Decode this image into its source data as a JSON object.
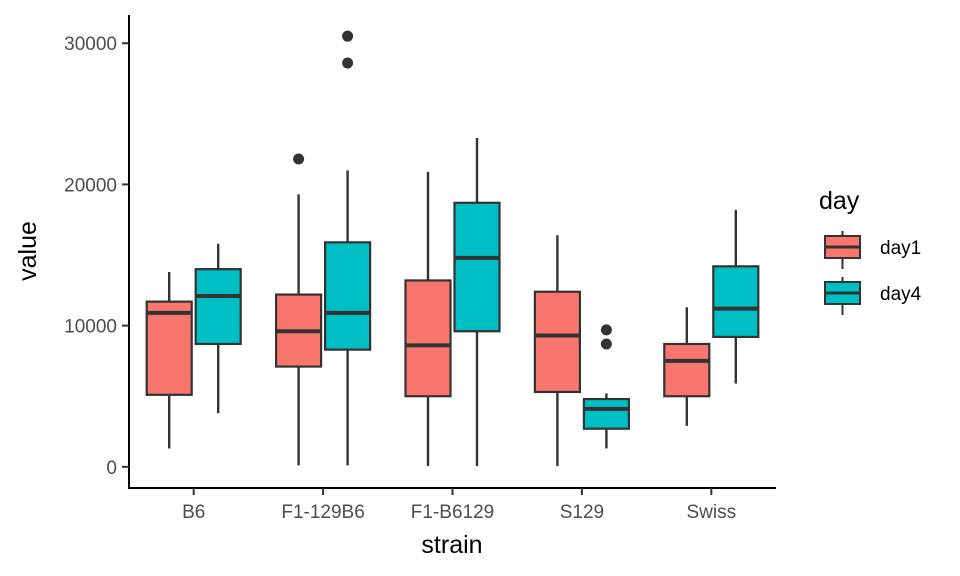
{
  "chart_data": {
    "type": "boxplot",
    "title": "",
    "xlabel": "strain",
    "ylabel": "value",
    "categories": [
      "B6",
      "F1-129B6",
      "F1-B6129",
      "S129",
      "Swiss"
    ],
    "ylim": [
      -1500,
      32000
    ],
    "yticks": [
      0,
      10000,
      20000,
      30000
    ],
    "ytick_labels": [
      "0",
      "10000",
      "20000",
      "30000"
    ],
    "grid": false,
    "legend": {
      "title": "day",
      "placement": "right",
      "entries": [
        "day1",
        "day4"
      ]
    },
    "colors": {
      "day1": "#F8766D",
      "day4": "#00BFC4",
      "stroke": "#333333",
      "axis": "#000000"
    },
    "series": [
      {
        "name": "day1",
        "boxes": [
          {
            "category": "B6",
            "whisker_low": 1300,
            "q1": 5100,
            "median": 10900,
            "q3": 11700,
            "whisker_high": 13800,
            "outliers": []
          },
          {
            "category": "F1-129B6",
            "whisker_low": 100,
            "q1": 7100,
            "median": 9600,
            "q3": 12200,
            "whisker_high": 19300,
            "outliers": [
              21800
            ]
          },
          {
            "category": "F1-B6129",
            "whisker_low": 50,
            "q1": 5000,
            "median": 8600,
            "q3": 13200,
            "whisker_high": 20900,
            "outliers": []
          },
          {
            "category": "S129",
            "whisker_low": 50,
            "q1": 5300,
            "median": 9300,
            "q3": 12400,
            "whisker_high": 16400,
            "outliers": []
          },
          {
            "category": "Swiss",
            "whisker_low": 2900,
            "q1": 5000,
            "median": 7500,
            "q3": 8700,
            "whisker_high": 11300,
            "outliers": []
          }
        ]
      },
      {
        "name": "day4",
        "boxes": [
          {
            "category": "B6",
            "whisker_low": 3800,
            "q1": 8700,
            "median": 12100,
            "q3": 14000,
            "whisker_high": 15800,
            "outliers": []
          },
          {
            "category": "F1-129B6",
            "whisker_low": 100,
            "q1": 8300,
            "median": 10900,
            "q3": 15900,
            "whisker_high": 21000,
            "outliers": [
              28600,
              30500
            ]
          },
          {
            "category": "F1-B6129",
            "whisker_low": 50,
            "q1": 9600,
            "median": 14800,
            "q3": 18700,
            "whisker_high": 23300,
            "outliers": []
          },
          {
            "category": "S129",
            "whisker_low": 1300,
            "q1": 2700,
            "median": 4100,
            "q3": 4800,
            "whisker_high": 5200,
            "outliers": [
              8700,
              9700
            ]
          },
          {
            "category": "Swiss",
            "whisker_low": 5900,
            "q1": 9200,
            "median": 11200,
            "q3": 14200,
            "whisker_high": 18200,
            "outliers": []
          }
        ]
      }
    ]
  }
}
